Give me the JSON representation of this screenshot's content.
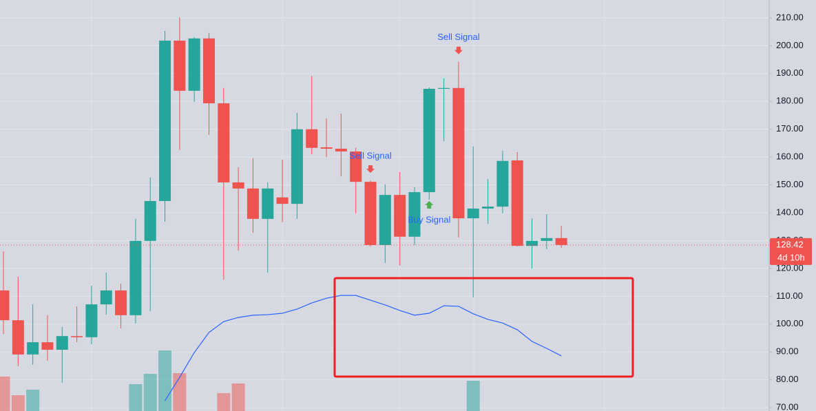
{
  "chart_data": {
    "type": "candlestick",
    "up_color": "#26a69a",
    "down_color": "#ef5350",
    "open": [
      112.1,
      101.4,
      89.1,
      93.5,
      90.8,
      95.7,
      95.3,
      107.1,
      112.1,
      103.2,
      129.9,
      144.2,
      201.8,
      183.8,
      202.6,
      179.3,
      150.9,
      148.7,
      137.8,
      145.5,
      143.2,
      170,
      163.5,
      163,
      162,
      151.1,
      128.4,
      146.4,
      131.4,
      147.4,
      184.5,
      184.8,
      138,
      141.5,
      142.2,
      158.8,
      128.1,
      129.9,
      130.9
    ],
    "high": [
      126.2,
      117,
      107.1,
      103.2,
      99,
      106.4,
      113.8,
      118.5,
      114.5,
      137.8,
      152.6,
      205.3,
      210.2,
      203.1,
      204.6,
      184.8,
      156.3,
      159.6,
      150.9,
      159.1,
      175.9,
      189.2,
      173.9,
      175.6,
      163.3,
      151.6,
      150.2,
      154.6,
      149.2,
      185,
      188.2,
      194.2,
      163.8,
      152.1,
      162.3,
      161.8,
      138,
      139.5,
      135.3
    ],
    "low": [
      96.5,
      84.9,
      85.4,
      86.9,
      79,
      93.5,
      92.8,
      103.4,
      98.5,
      100.2,
      104.7,
      136.8,
      162.5,
      179.8,
      168,
      116,
      126.4,
      132.8,
      118.5,
      136.6,
      137.8,
      161,
      160,
      153.1,
      139.8,
      127.9,
      122,
      121,
      128.4,
      144.7,
      165.7,
      131.1,
      109.6,
      136,
      139.8,
      127.9,
      120,
      126.9,
      127.4
    ],
    "close": [
      101.4,
      89.1,
      93.5,
      90.8,
      95.7,
      95.3,
      107.1,
      112.1,
      103.2,
      129.9,
      144.2,
      201.8,
      183.8,
      202.6,
      179.3,
      150.9,
      148.7,
      137.8,
      148.7,
      143.2,
      170,
      163.3,
      163,
      162,
      151.1,
      128.4,
      146.4,
      131.4,
      147.4,
      184.5,
      184.8,
      138,
      141.5,
      142.2,
      158.6,
      128.1,
      129.9,
      130.9,
      128.42
    ],
    "volume": [
      50,
      23,
      31,
      null,
      null,
      null,
      null,
      null,
      null,
      39,
      54,
      88,
      55,
      null,
      null,
      26,
      40,
      null,
      null,
      null,
      null,
      null,
      null,
      null,
      null,
      null,
      null,
      null,
      null,
      null,
      null,
      null,
      44,
      null,
      null,
      null,
      null,
      null,
      null
    ],
    "vlim": [
      0,
      100
    ],
    "ma": {
      "color": "#2962ff",
      "values": [
        null,
        null,
        null,
        null,
        null,
        null,
        null,
        null,
        null,
        null,
        null,
        72.5,
        80.9,
        89.8,
        97,
        100.9,
        102.4,
        103.2,
        103.4,
        103.9,
        105.4,
        107.6,
        109.3,
        110.3,
        110.3,
        108.6,
        106.9,
        104.9,
        103.2,
        103.9,
        106.6,
        106.4,
        103.7,
        101.7,
        100.4,
        98,
        93.8,
        91.3,
        88.6
      ]
    },
    "ylim": [
      68.8,
      216.4
    ],
    "yticks": [
      {
        "value": 70,
        "label": "70.00"
      },
      {
        "value": 80,
        "label": "80.00"
      },
      {
        "value": 90,
        "label": "90.00"
      },
      {
        "value": 100,
        "label": "100.00"
      },
      {
        "value": 110,
        "label": "110.00"
      },
      {
        "value": 120,
        "label": "120.00"
      },
      {
        "value": 130,
        "label": "130.00"
      },
      {
        "value": 140,
        "label": "140.00"
      },
      {
        "value": 150,
        "label": "150.00"
      },
      {
        "value": 160,
        "label": "160.00"
      },
      {
        "value": 170,
        "label": "170.00"
      },
      {
        "value": 180,
        "label": "180.00"
      },
      {
        "value": 190,
        "label": "190.00"
      },
      {
        "value": 200,
        "label": "200.00"
      },
      {
        "value": 210,
        "label": "210.00"
      }
    ],
    "grid": true,
    "last_price": 128.42,
    "countdown": "4d 10h",
    "signals": [
      {
        "text": "Sell Signal",
        "candle": 25,
        "position": "above",
        "color": "#ef5350"
      },
      {
        "text": "Buy Signal",
        "candle": 29,
        "position": "below",
        "color": "#4caf50"
      },
      {
        "text": "Sell Signal",
        "candle": 31,
        "position": "above",
        "color": "#ef5350"
      }
    ]
  }
}
